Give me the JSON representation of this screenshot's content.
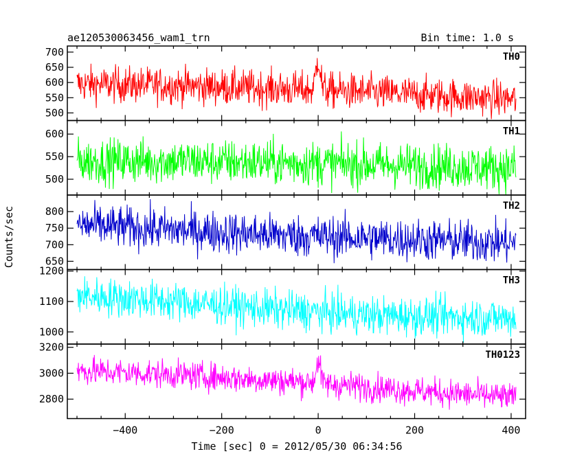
{
  "header": {
    "title": "ae120530063456_wam1_trn",
    "bin_time": "Bin time: 1.0 s"
  },
  "chart_data": {
    "type": "line",
    "xlabel": "Time [sec] 0 = 2012/05/30 06:34:56",
    "ylabel": "Counts/sec",
    "xlim": [
      -520,
      430
    ],
    "x_range": [
      -500,
      410
    ],
    "x_ticks": [
      -400,
      -200,
      0,
      200,
      400
    ],
    "x_tick_labels": [
      "−400",
      "−200",
      "0",
      "200",
      "400"
    ],
    "burst_time": 0,
    "panels": [
      {
        "name": "TH0",
        "color": "#ff0000",
        "ylim": [
          475,
          720
        ],
        "y_ticks": [
          500,
          550,
          600,
          650,
          700
        ],
        "y_tick_labels": [
          "500",
          "550",
          "600",
          "650",
          "700"
        ],
        "trend": [
          [
            -500,
            595
          ],
          [
            -300,
            590
          ],
          [
            -100,
            580
          ],
          [
            -10,
            575
          ],
          [
            0,
            690
          ],
          [
            10,
            575
          ],
          [
            200,
            560
          ],
          [
            410,
            545
          ]
        ],
        "noise": 30
      },
      {
        "name": "TH1",
        "color": "#00ff00",
        "ylim": [
          465,
          630
        ],
        "y_ticks": [
          500,
          550,
          600
        ],
        "y_tick_labels": [
          "500",
          "550",
          "600"
        ],
        "trend": [
          [
            -500,
            540
          ],
          [
            -300,
            540
          ],
          [
            0,
            535
          ],
          [
            200,
            530
          ],
          [
            410,
            525
          ]
        ],
        "noise": 25
      },
      {
        "name": "TH2",
        "color": "#0000cc",
        "ylim": [
          625,
          850
        ],
        "y_ticks": [
          650,
          700,
          750,
          800
        ],
        "y_tick_labels": [
          "650",
          "700",
          "750",
          "800"
        ],
        "trend": [
          [
            -500,
            760
          ],
          [
            -300,
            745
          ],
          [
            -100,
            730
          ],
          [
            100,
            720
          ],
          [
            410,
            705
          ]
        ],
        "noise": 32
      },
      {
        "name": "TH3",
        "color": "#00ffff",
        "ylim": [
          960,
          1205
        ],
        "y_ticks": [
          1000,
          1100,
          1200
        ],
        "y_tick_labels": [
          "1000",
          "1100",
          "1200"
        ],
        "trend": [
          [
            -500,
            1120
          ],
          [
            -300,
            1100
          ],
          [
            -100,
            1075
          ],
          [
            100,
            1055
          ],
          [
            410,
            1045
          ]
        ],
        "noise": 32
      },
      {
        "name": "TH0123",
        "color": "#ff00ff",
        "ylim": [
          2650,
          3225
        ],
        "y_ticks": [
          2800,
          3000,
          3200
        ],
        "y_tick_labels": [
          "2800",
          "3000",
          "3200"
        ],
        "trend": [
          [
            -500,
            3020
          ],
          [
            -300,
            2990
          ],
          [
            -100,
            2945
          ],
          [
            -10,
            2930
          ],
          [
            0,
            3110
          ],
          [
            10,
            2920
          ],
          [
            200,
            2865
          ],
          [
            410,
            2810
          ]
        ],
        "noise": 55
      }
    ]
  }
}
